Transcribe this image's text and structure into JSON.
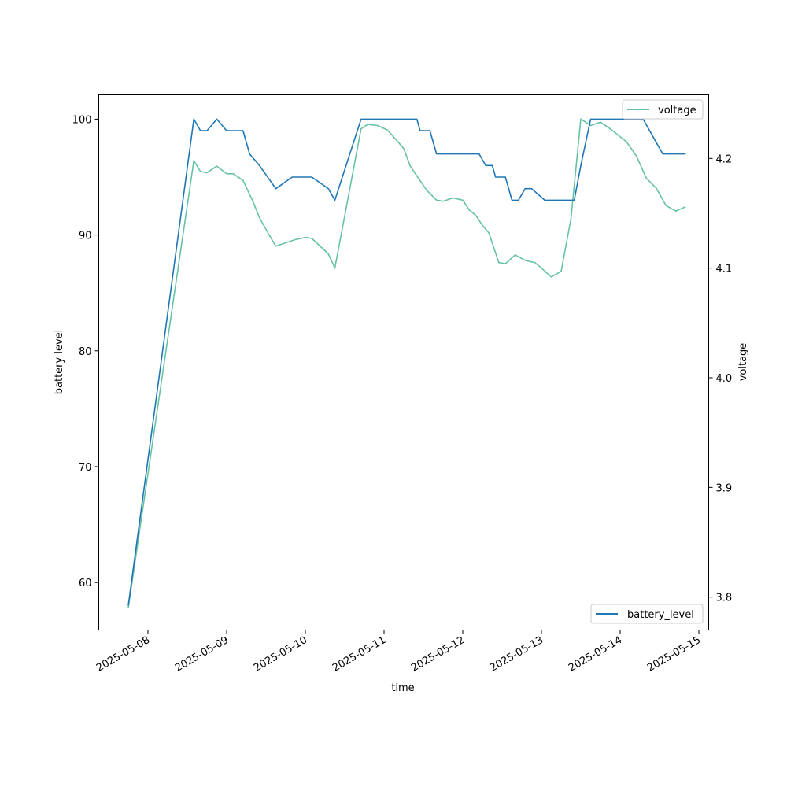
{
  "chart_data": {
    "type": "line",
    "title": "",
    "xlabel": "time",
    "ylabel": "battery level",
    "y2label": "voltage",
    "x_ticks": [
      "2025-05-08",
      "2025-05-09",
      "2025-05-10",
      "2025-05-11",
      "2025-05-12",
      "2025-05-13",
      "2025-05-14",
      "2025-05-15"
    ],
    "y_ticks": [
      60,
      70,
      80,
      90,
      100
    ],
    "y2_ticks": [
      3.8,
      3.9,
      4.0,
      4.1,
      4.2
    ],
    "xlim": [
      "2025-05-07T09:00",
      "2025-05-15T03:00"
    ],
    "ylim": [
      55.9,
      102.1
    ],
    "y2lim": [
      3.77,
      4.258
    ],
    "grid": false,
    "series": [
      {
        "name": "battery_level",
        "axis": "left",
        "color": "#1f77b4",
        "legend_position": "lower right",
        "x": [
          "2025-05-07T18:00",
          "2025-05-08T14:00",
          "2025-05-08T16:00",
          "2025-05-08T18:00",
          "2025-05-08T21:00",
          "2025-05-09T00:00",
          "2025-05-09T05:00",
          "2025-05-09T07:00",
          "2025-05-09T10:00",
          "2025-05-09T15:00",
          "2025-05-09T20:00",
          "2025-05-10T02:00",
          "2025-05-10T07:00",
          "2025-05-10T09:00",
          "2025-05-10T17:00",
          "2025-05-11T06:00",
          "2025-05-11T08:00",
          "2025-05-11T10:00",
          "2025-05-11T11:00",
          "2025-05-11T14:00",
          "2025-05-11T16:00",
          "2025-05-11T20:00",
          "2025-05-12T01:00",
          "2025-05-12T05:00",
          "2025-05-12T07:00",
          "2025-05-12T09:00",
          "2025-05-12T10:00",
          "2025-05-12T11:00",
          "2025-05-12T13:00",
          "2025-05-12T15:00",
          "2025-05-12T17:00",
          "2025-05-12T19:00",
          "2025-05-12T21:00",
          "2025-05-13T01:00",
          "2025-05-13T03:00",
          "2025-05-13T05:00",
          "2025-05-13T10:00",
          "2025-05-13T12:00",
          "2025-05-13T15:00",
          "2025-05-13T22:00",
          "2025-05-14T05:00",
          "2025-05-14T07:00",
          "2025-05-14T09:00",
          "2025-05-14T11:00",
          "2025-05-14T13:00",
          "2025-05-14T15:00",
          "2025-05-14T20:00"
        ],
        "values": [
          58,
          100,
          99,
          99,
          100,
          99,
          99,
          97,
          96,
          94,
          95,
          95,
          94,
          93,
          100,
          100,
          100,
          100,
          99,
          99,
          97,
          97,
          97,
          97,
          96,
          96,
          95,
          95,
          95,
          93,
          93,
          94,
          94,
          93,
          93,
          93,
          93,
          96,
          100,
          100,
          100,
          100,
          99,
          98,
          97,
          97,
          97
        ]
      },
      {
        "name": "voltage",
        "axis": "right",
        "color": "#66c2a5",
        "legend_position": "upper right",
        "x": [
          "2025-05-07T18:00",
          "2025-05-08T14:00",
          "2025-05-08T16:00",
          "2025-05-08T18:00",
          "2025-05-08T21:00",
          "2025-05-09T00:00",
          "2025-05-09T02:00",
          "2025-05-09T05:00",
          "2025-05-09T08:00",
          "2025-05-09T10:00",
          "2025-05-09T13:00",
          "2025-05-09T15:00",
          "2025-05-09T21:00",
          "2025-05-10T00:00",
          "2025-05-10T02:00",
          "2025-05-10T07:00",
          "2025-05-10T09:00",
          "2025-05-10T17:00",
          "2025-05-10T19:00",
          "2025-05-10T22:00",
          "2025-05-11T01:00",
          "2025-05-11T04:00",
          "2025-05-11T06:00",
          "2025-05-11T08:00",
          "2025-05-11T10:00",
          "2025-05-11T13:00",
          "2025-05-11T16:00",
          "2025-05-11T18:00",
          "2025-05-11T21:00",
          "2025-05-12T00:00",
          "2025-05-12T02:00",
          "2025-05-12T04:00",
          "2025-05-12T06:00",
          "2025-05-12T08:00",
          "2025-05-12T11:00",
          "2025-05-12T13:00",
          "2025-05-12T16:00",
          "2025-05-12T19:00",
          "2025-05-12T22:00",
          "2025-05-13T00:00",
          "2025-05-13T03:00",
          "2025-05-13T06:00",
          "2025-05-13T09:00",
          "2025-05-13T12:00",
          "2025-05-13T15:00",
          "2025-05-13T18:00",
          "2025-05-13T21:00",
          "2025-05-14T02:00",
          "2025-05-14T05:00",
          "2025-05-14T08:00",
          "2025-05-14T11:00",
          "2025-05-14T14:00",
          "2025-05-14T17:00",
          "2025-05-14T20:00"
        ],
        "values": [
          3.79,
          4.198,
          4.188,
          4.187,
          4.193,
          4.186,
          4.186,
          4.18,
          4.161,
          4.146,
          4.13,
          4.12,
          4.126,
          4.128,
          4.127,
          4.113,
          4.1,
          4.227,
          4.231,
          4.23,
          4.226,
          4.216,
          4.209,
          4.193,
          4.184,
          4.171,
          4.162,
          4.161,
          4.164,
          4.162,
          4.153,
          4.148,
          4.139,
          4.132,
          4.105,
          4.104,
          4.112,
          4.107,
          4.105,
          4.1,
          4.092,
          4.097,
          4.145,
          4.236,
          4.23,
          4.233,
          4.227,
          4.215,
          4.202,
          4.182,
          4.173,
          4.157,
          4.152,
          4.156
        ]
      }
    ]
  }
}
